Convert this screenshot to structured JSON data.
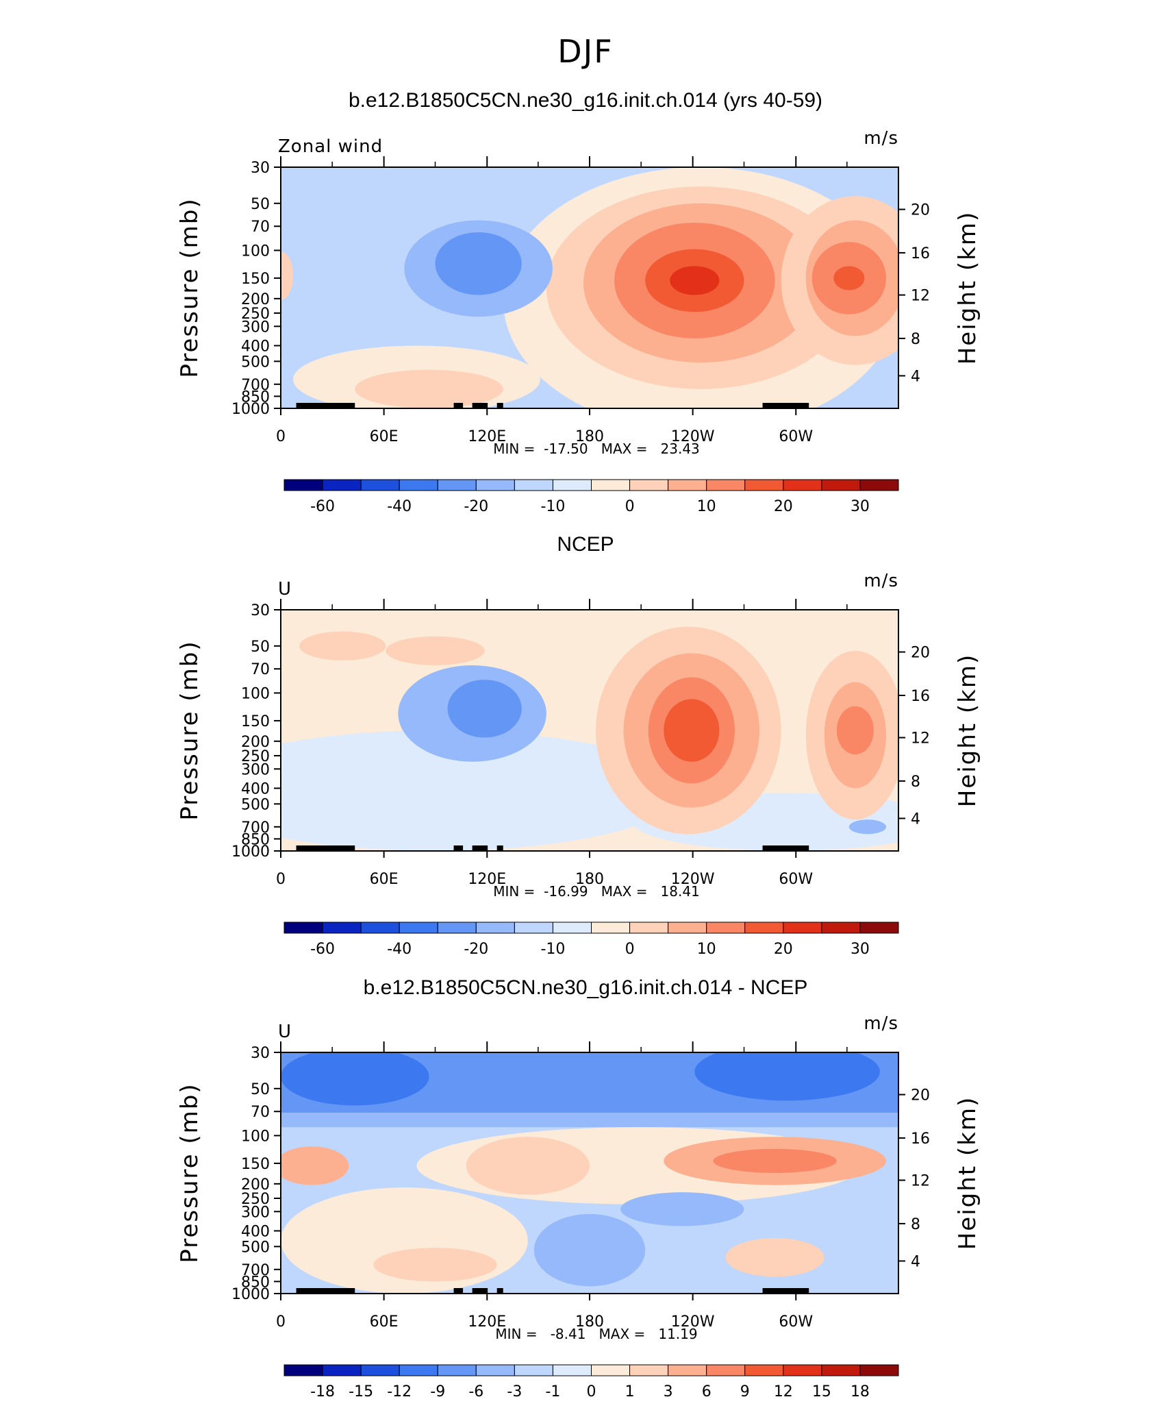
{
  "title": "DJF",
  "colors": {
    "scale": [
      "#00007f",
      "#0a24c2",
      "#1e50de",
      "#3c78ef",
      "#6496f5",
      "#96b9fb",
      "#c0d7fd",
      "#deebfd",
      "#fdebd9",
      "#fdd2b8",
      "#fcb090",
      "#f98765",
      "#f25a34",
      "#e33018",
      "#bf1a0c",
      "#8c0a0a"
    ],
    "land": "#000000",
    "background": "#ffffff"
  },
  "chart_data": [
    {
      "type": "heatmap",
      "id": "model",
      "title": "b.e12.B1850C5CN.ne30_g16.init.ch.014 (yrs 40-59)",
      "left_label": "Zonal wind",
      "units": "m/s",
      "ylabel": "Pressure (mb)",
      "y2label": "Height (km)",
      "y_ticks": [
        "30",
        "50",
        "70",
        "100",
        "150",
        "200",
        "250",
        "300",
        "400",
        "500",
        "700",
        "850",
        "1000"
      ],
      "y2_ticks": [
        "20",
        "16",
        "12",
        "8",
        "4"
      ],
      "x_ticks": [
        "0",
        "60E",
        "120E",
        "180",
        "120W",
        "60W"
      ],
      "min": "-17.50",
      "max": "23.43",
      "colorbar_labels": [
        "-60",
        "-40",
        "-20",
        "-10",
        "0",
        "10",
        "20",
        "30"
      ],
      "stats_text": "MIN =  -17.50   MAX =   23.43"
    },
    {
      "type": "heatmap",
      "id": "obs",
      "title": "NCEP",
      "left_label": "U",
      "units": "m/s",
      "ylabel": "Pressure (mb)",
      "y2label": "Height (km)",
      "y_ticks": [
        "30",
        "50",
        "70",
        "100",
        "150",
        "200",
        "250",
        "300",
        "400",
        "500",
        "700",
        "850",
        "1000"
      ],
      "y2_ticks": [
        "20",
        "16",
        "12",
        "8",
        "4"
      ],
      "x_ticks": [
        "0",
        "60E",
        "120E",
        "180",
        "120W",
        "60W"
      ],
      "min": "-16.99",
      "max": "18.41",
      "colorbar_labels": [
        "-60",
        "-40",
        "-20",
        "-10",
        "0",
        "10",
        "20",
        "30"
      ],
      "stats_text": "MIN =  -16.99   MAX =   18.41"
    },
    {
      "type": "heatmap",
      "id": "diff",
      "title": "b.e12.B1850C5CN.ne30_g16.init.ch.014 - NCEP",
      "left_label": "U",
      "units": "m/s",
      "ylabel": "Pressure (mb)",
      "y2label": "Height (km)",
      "y_ticks": [
        "30",
        "50",
        "70",
        "100",
        "150",
        "200",
        "250",
        "300",
        "400",
        "500",
        "700",
        "850",
        "1000"
      ],
      "y2_ticks": [
        "20",
        "16",
        "12",
        "8",
        "4"
      ],
      "x_ticks": [
        "0",
        "60E",
        "120E",
        "180",
        "120W",
        "60W"
      ],
      "min": "-8.41",
      "max": "11.19",
      "colorbar_labels": [
        "-18",
        "-15",
        "-12",
        "-9",
        "-6",
        "-3",
        "-1",
        "0",
        "1",
        "3",
        "6",
        "9",
        "12",
        "15",
        "18"
      ],
      "stats_text": "MIN =   -8.41   MAX =   11.19"
    }
  ]
}
